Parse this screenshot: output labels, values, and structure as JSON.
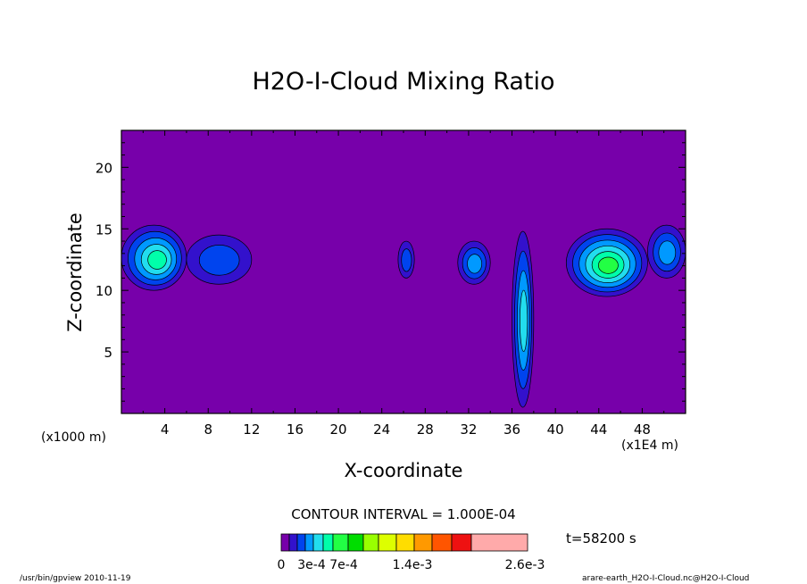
{
  "chart_data": {
    "type": "heatmap",
    "title": "H2O-I-Cloud Mixing Ratio",
    "xlabel": "X-coordinate",
    "ylabel": "Z-coordinate",
    "x_unit_left": "(x1000 m)",
    "x_unit_right": "(x1E4 m)",
    "xlim": [
      0,
      52
    ],
    "ylim": [
      0,
      23
    ],
    "x_ticks": [
      4,
      8,
      12,
      16,
      20,
      24,
      28,
      32,
      36,
      40,
      44,
      48
    ],
    "y_ticks": [
      5,
      10,
      15,
      20
    ],
    "contour_interval": "CONTOUR INTERVAL = 1.000E-04",
    "time_label": "t=58200 s",
    "background_color": "#7700aa",
    "colorbar": {
      "colors": [
        "#7700aa",
        "#3311cc",
        "#0044ee",
        "#0099ff",
        "#22ddee",
        "#00ffaa",
        "#22ff44",
        "#00dd00",
        "#99ff00",
        "#ddff00",
        "#ffdd00",
        "#ff9900",
        "#ff5500",
        "#ee1111",
        "#ffaaaa"
      ],
      "labels": [
        "0",
        "3e-4",
        "7e-4",
        "1.4e-3",
        "2.6e-3"
      ]
    },
    "cloud_regions": [
      {
        "x": [
          0,
          6
        ],
        "z": [
          10,
          15.3
        ],
        "peak_level": 5
      },
      {
        "x": [
          6,
          12
        ],
        "z": [
          10.5,
          14.5
        ],
        "peak_level": 2
      },
      {
        "x": [
          25.5,
          27
        ],
        "z": [
          11,
          14
        ],
        "peak_level": 2
      },
      {
        "x": [
          31,
          34
        ],
        "z": [
          10.5,
          14
        ],
        "peak_level": 3
      },
      {
        "x": [
          36,
          38
        ],
        "z": [
          0.5,
          14.8
        ],
        "peak_level": 4
      },
      {
        "x": [
          41,
          48.5
        ],
        "z": [
          9.5,
          15
        ],
        "peak_level": 6
      },
      {
        "x": [
          48.5,
          52
        ],
        "z": [
          11,
          15.3
        ],
        "peak_level": 3
      }
    ]
  },
  "footer": {
    "left": "/usr/bin/gpview   2010-11-19",
    "right": "arare-earth_H2O-I-Cloud.nc@H2O-I-Cloud"
  }
}
